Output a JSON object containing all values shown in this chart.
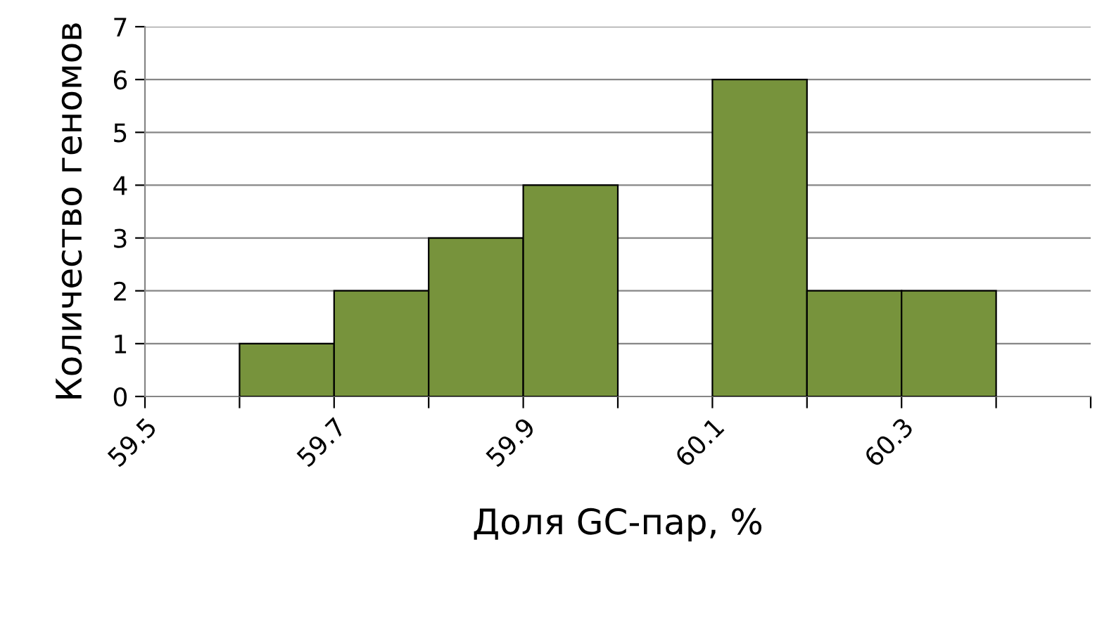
{
  "chart_data": {
    "type": "histogram",
    "xlabel": "Доля GC-пар, %",
    "ylabel": "Количество геномов",
    "bins": [
      59.5,
      59.6,
      59.7,
      59.8,
      59.9,
      60.0,
      60.1,
      60.2,
      60.3,
      60.4,
      60.5
    ],
    "values": [
      0,
      1,
      2,
      3,
      4,
      0,
      6,
      2,
      2,
      0
    ],
    "color": "#77933c",
    "xlim": [
      59.5,
      60.5
    ],
    "xticks": [
      {
        "value": 59.5,
        "label": "59.5"
      },
      {
        "value": 59.6,
        "label": null
      },
      {
        "value": 59.7,
        "label": "59.7"
      },
      {
        "value": 59.8,
        "label": null
      },
      {
        "value": 59.9,
        "label": "59.9"
      },
      {
        "value": 60.0,
        "label": null
      },
      {
        "value": 60.1,
        "label": "60.1"
      },
      {
        "value": 60.2,
        "label": null
      },
      {
        "value": 60.3,
        "label": "60.3"
      },
      {
        "value": 60.4,
        "label": null
      },
      {
        "value": 60.5,
        "label": null
      }
    ],
    "ylim": [
      0,
      7
    ],
    "yticks": [
      0,
      1,
      2,
      3,
      4,
      5,
      6,
      7
    ],
    "grid": "y",
    "legend": false
  }
}
